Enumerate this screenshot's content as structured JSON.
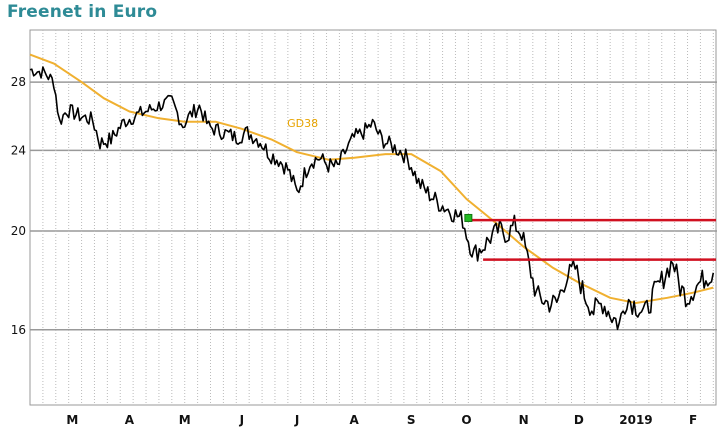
{
  "chart_data": {
    "type": "line",
    "title": "Freenet in Euro",
    "y_scale": "log",
    "ylim": [
      13.5,
      31.5
    ],
    "y_ticks": [
      16,
      20,
      24,
      28
    ],
    "x_domain": [
      "2018-02-20",
      "2019-02-28"
    ],
    "x_tick_labels": [
      {
        "label": "M",
        "date": "2018-03-15"
      },
      {
        "label": "A",
        "date": "2018-04-15"
      },
      {
        "label": "M",
        "date": "2018-05-15"
      },
      {
        "label": "J",
        "date": "2018-06-15"
      },
      {
        "label": "J",
        "date": "2018-07-15"
      },
      {
        "label": "A",
        "date": "2018-08-15"
      },
      {
        "label": "S",
        "date": "2018-09-15"
      },
      {
        "label": "O",
        "date": "2018-10-15"
      },
      {
        "label": "N",
        "date": "2018-11-15"
      },
      {
        "label": "D",
        "date": "2018-12-15"
      },
      {
        "label": "2019",
        "date": "2019-01-15"
      },
      {
        "label": "F",
        "date": "2019-02-15"
      }
    ],
    "grid": true,
    "series": [
      {
        "role": "price",
        "color": "#000000",
        "points": [
          [
            "2018-02-20",
            28.8
          ],
          [
            "2018-02-28",
            28.6
          ],
          [
            "2018-03-05",
            28.0
          ],
          [
            "2018-03-08",
            25.6
          ],
          [
            "2018-03-12",
            26.3
          ],
          [
            "2018-03-20",
            25.9
          ],
          [
            "2018-03-26",
            25.7
          ],
          [
            "2018-03-30",
            24.4
          ],
          [
            "2018-04-05",
            24.6
          ],
          [
            "2018-04-12",
            25.6
          ],
          [
            "2018-04-19",
            26.0
          ],
          [
            "2018-04-26",
            26.3
          ],
          [
            "2018-05-02",
            26.6
          ],
          [
            "2018-05-08",
            26.8
          ],
          [
            "2018-05-14",
            25.4
          ],
          [
            "2018-05-18",
            26.0
          ],
          [
            "2018-05-23",
            26.5
          ],
          [
            "2018-05-28",
            25.3
          ],
          [
            "2018-06-05",
            25.0
          ],
          [
            "2018-06-12",
            24.7
          ],
          [
            "2018-06-18",
            25.0
          ],
          [
            "2018-06-25",
            24.5
          ],
          [
            "2018-06-30",
            23.8
          ],
          [
            "2018-07-05",
            23.5
          ],
          [
            "2018-07-10",
            23.0
          ],
          [
            "2018-07-15",
            21.8
          ],
          [
            "2018-07-18",
            22.5
          ],
          [
            "2018-07-22",
            23.4
          ],
          [
            "2018-07-27",
            23.6
          ],
          [
            "2018-08-01",
            23.2
          ],
          [
            "2018-08-06",
            23.1
          ],
          [
            "2018-08-10",
            23.9
          ],
          [
            "2018-08-15",
            24.7
          ],
          [
            "2018-08-20",
            25.0
          ],
          [
            "2018-08-25",
            25.5
          ],
          [
            "2018-08-30",
            24.6
          ],
          [
            "2018-09-05",
            24.2
          ],
          [
            "2018-09-10",
            23.9
          ],
          [
            "2018-09-14",
            23.4
          ],
          [
            "2018-09-19",
            22.3
          ],
          [
            "2018-09-24",
            21.8
          ],
          [
            "2018-09-30",
            21.3
          ],
          [
            "2018-10-05",
            21.0
          ],
          [
            "2018-10-10",
            20.7
          ],
          [
            "2018-10-13",
            20.5
          ],
          [
            "2018-10-16",
            19.6
          ],
          [
            "2018-10-19",
            19.0
          ],
          [
            "2018-10-24",
            19.3
          ],
          [
            "2018-10-29",
            19.8
          ],
          [
            "2018-11-02",
            20.1
          ],
          [
            "2018-11-06",
            19.8
          ],
          [
            "2018-11-10",
            20.3
          ],
          [
            "2018-11-14",
            19.9
          ],
          [
            "2018-11-18",
            18.5
          ],
          [
            "2018-11-22",
            17.3
          ],
          [
            "2018-11-28",
            17.0
          ],
          [
            "2018-12-03",
            17.0
          ],
          [
            "2018-12-08",
            18.0
          ],
          [
            "2018-12-13",
            18.4
          ],
          [
            "2018-12-18",
            17.3
          ],
          [
            "2018-12-23",
            16.7
          ],
          [
            "2018-12-28",
            17.0
          ],
          [
            "2019-01-02",
            16.5
          ],
          [
            "2019-01-06",
            16.2
          ],
          [
            "2019-01-10",
            17.2
          ],
          [
            "2019-01-15",
            16.9
          ],
          [
            "2019-01-20",
            16.6
          ],
          [
            "2019-01-25",
            17.4
          ],
          [
            "2019-01-30",
            18.0
          ],
          [
            "2019-02-04",
            18.7
          ],
          [
            "2019-02-08",
            17.6
          ],
          [
            "2019-02-12",
            17.2
          ],
          [
            "2019-02-16",
            17.6
          ],
          [
            "2019-02-20",
            17.9
          ],
          [
            "2019-02-26",
            18.2
          ]
        ]
      },
      {
        "role": "moving-average",
        "name": "GD38",
        "color": "#f0b030",
        "points": [
          [
            "2018-02-20",
            29.8
          ],
          [
            "2018-03-05",
            29.2
          ],
          [
            "2018-03-20",
            28.0
          ],
          [
            "2018-04-01",
            27.0
          ],
          [
            "2018-04-15",
            26.2
          ],
          [
            "2018-05-01",
            25.8
          ],
          [
            "2018-05-15",
            25.6
          ],
          [
            "2018-06-01",
            25.6
          ],
          [
            "2018-06-15",
            25.2
          ],
          [
            "2018-07-01",
            24.6
          ],
          [
            "2018-07-15",
            23.9
          ],
          [
            "2018-08-01",
            23.5
          ],
          [
            "2018-08-15",
            23.6
          ],
          [
            "2018-09-01",
            23.8
          ],
          [
            "2018-09-15",
            23.8
          ],
          [
            "2018-10-01",
            22.9
          ],
          [
            "2018-10-15",
            21.5
          ],
          [
            "2018-11-01",
            20.3
          ],
          [
            "2018-11-15",
            19.3
          ],
          [
            "2018-12-01",
            18.4
          ],
          [
            "2018-12-15",
            17.8
          ],
          [
            "2019-01-01",
            17.2
          ],
          [
            "2019-01-15",
            17.0
          ],
          [
            "2019-02-01",
            17.2
          ],
          [
            "2019-02-15",
            17.4
          ],
          [
            "2019-02-26",
            17.6
          ]
        ]
      }
    ],
    "horizontal_lines": [
      {
        "value": 20.5,
        "from": "2018-10-16",
        "color": "#d01020"
      },
      {
        "value": 18.75,
        "from": "2018-10-24",
        "color": "#d01020"
      }
    ],
    "marker": {
      "date": "2018-10-16",
      "value": 20.6,
      "color": "#22bb22"
    },
    "annotations": [
      {
        "text": "GD38",
        "date": "2018-07-18",
        "value": 25.3,
        "color": "#e8a400"
      }
    ]
  }
}
